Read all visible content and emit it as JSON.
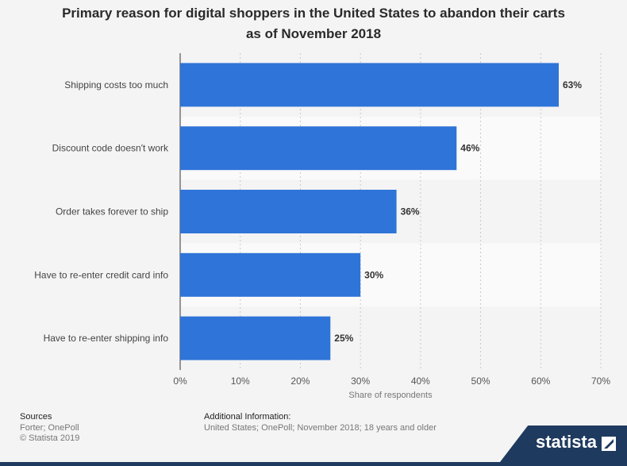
{
  "title_line1": "Primary reason for digital shoppers in the United States to abandon their carts",
  "title_line2": "as of November 2018",
  "chart_data": {
    "type": "bar",
    "orientation": "horizontal",
    "categories": [
      "Shipping costs too much",
      "Discount code doesn't work",
      "Order takes forever to ship",
      "Have to re-enter credit card info",
      "Have to re-enter shipping info"
    ],
    "values": [
      63,
      46,
      36,
      30,
      25
    ],
    "value_labels": [
      "63%",
      "46%",
      "36%",
      "30%",
      "25%"
    ],
    "xlabel": "Share of respondents",
    "xticks": [
      "0%",
      "10%",
      "20%",
      "30%",
      "40%",
      "50%",
      "60%",
      "70%"
    ],
    "xlim": [
      0,
      70
    ],
    "grid": true,
    "bar_color": "#2f74d8"
  },
  "footer": {
    "sources_title": "Sources",
    "sources_lines": [
      "Forter; OnePoll",
      "© Statista 2019"
    ],
    "additional_title": "Additional Information:",
    "additional_text": "United States; OnePoll; November 2018; 18 years and older"
  },
  "brand": {
    "name": "statista",
    "color": "#1f3a5f"
  }
}
